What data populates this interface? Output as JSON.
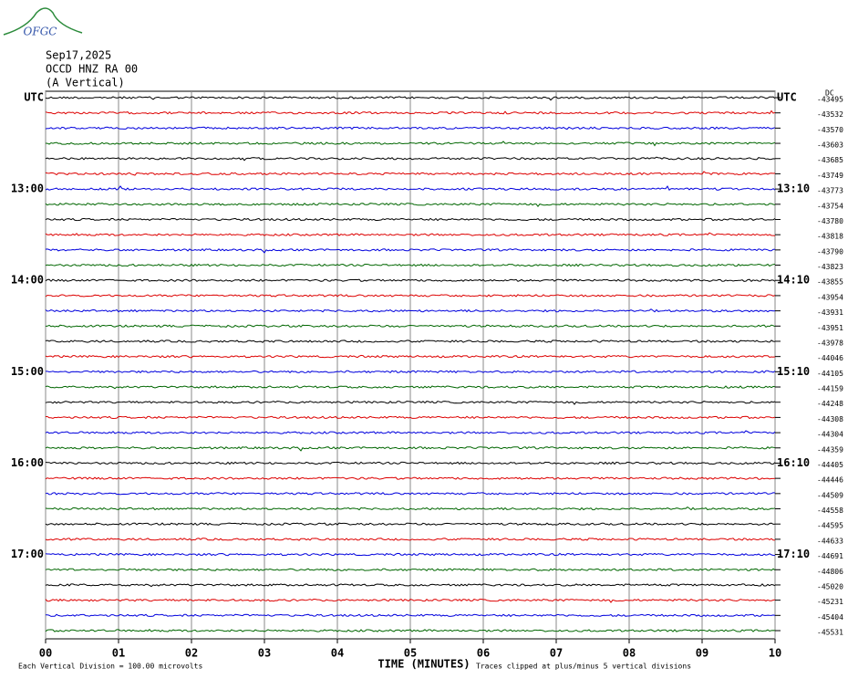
{
  "chart_data": {
    "type": "helicorder",
    "logo_text": "OFGC",
    "date": "Sep17,2025",
    "station": "OCCD HNZ RA 00",
    "component": "(A Vertical)",
    "xlabel": "TIME (MINUTES)",
    "xlim": [
      0,
      10
    ],
    "xticks": [
      {
        "value": 0,
        "label": "00"
      },
      {
        "value": 1,
        "label": "01"
      },
      {
        "value": 2,
        "label": "02"
      },
      {
        "value": 3,
        "label": "03"
      },
      {
        "value": 4,
        "label": "04"
      },
      {
        "value": 5,
        "label": "05"
      },
      {
        "value": 6,
        "label": "06"
      },
      {
        "value": 7,
        "label": "07"
      },
      {
        "value": 8,
        "label": "08"
      },
      {
        "value": 9,
        "label": "09"
      },
      {
        "value": 10,
        "label": "10"
      }
    ],
    "grid": true,
    "dc_label": "DC",
    "colors": [
      "#000000",
      "#dd0000",
      "#0000dd",
      "#006600"
    ],
    "left_labels": [
      "UTC",
      null,
      null,
      null,
      null,
      null,
      "13:00",
      null,
      null,
      null,
      null,
      null,
      "14:00",
      null,
      null,
      null,
      null,
      null,
      "15:00",
      null,
      null,
      null,
      null,
      null,
      "16:00",
      null,
      null,
      null,
      null,
      null,
      "17:00",
      null,
      null,
      null,
      null,
      null
    ],
    "right_labels": [
      "UTC",
      null,
      null,
      null,
      null,
      null,
      "13:10",
      null,
      null,
      null,
      null,
      null,
      "14:10",
      null,
      null,
      null,
      null,
      null,
      "15:10",
      null,
      null,
      null,
      null,
      null,
      "16:10",
      null,
      null,
      null,
      null,
      null,
      "17:10",
      null,
      null,
      null,
      null,
      null
    ],
    "offsets": [
      -43495,
      -43532,
      -43570,
      -43603,
      -43685,
      -43749,
      -43773,
      -43754,
      -43780,
      -43818,
      -43790,
      -43823,
      -43855,
      -43954,
      -43931,
      -43951,
      -43978,
      -44046,
      -44105,
      -44159,
      -44248,
      -44308,
      -44304,
      -44359,
      -44405,
      -44446,
      -44509,
      -44558,
      -44595,
      -44633,
      -44691,
      -44806,
      -45020,
      -45231,
      -45404,
      -45531
    ],
    "scale_note": "Each Vertical Division =  100.00 microvolts",
    "clip_note": "Traces clipped at plus/minus 5 vertical divisions"
  }
}
